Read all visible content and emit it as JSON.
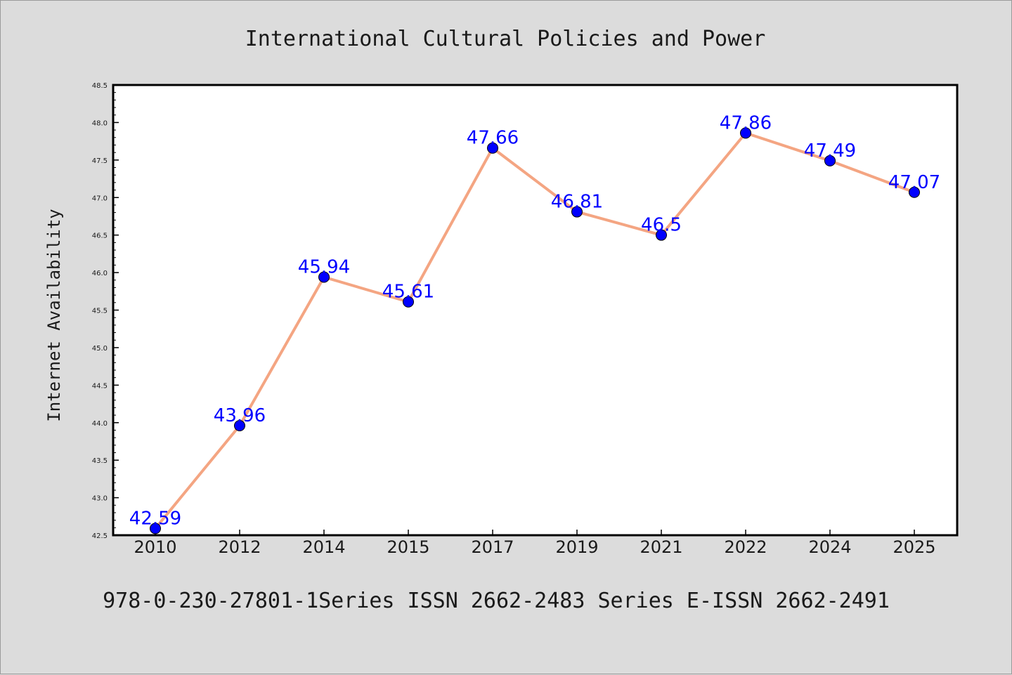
{
  "colors": {
    "background": "#dcdcdc",
    "plot_area": "#ffffff",
    "line": "#f4a582",
    "marker": "#0000ff",
    "data_label": "#0000ff",
    "text": "#1a1a1a"
  },
  "chart_data": {
    "type": "line",
    "title": "International Cultural Policies and Power",
    "xlabel": "",
    "ylabel": "Internet Availability",
    "categories": [
      "2010",
      "2012",
      "2014",
      "2015",
      "2017",
      "2019",
      "2021",
      "2022",
      "2024",
      "2025"
    ],
    "series": [
      {
        "values": [
          42.59,
          43.96,
          45.94,
          45.61,
          47.66,
          46.81,
          46.5,
          47.86,
          47.49,
          47.07
        ],
        "labels": [
          "42.59",
          "43.96",
          "45.94",
          "45.61",
          "47.66",
          "46.81",
          "46.5",
          "47.86",
          "47.49",
          "47.07"
        ]
      }
    ],
    "ylim": [
      42.5,
      48.5
    ],
    "yticks": [
      "42.5",
      "43.0",
      "43.5",
      "44.0",
      "44.5",
      "45.0",
      "45.5",
      "46.0",
      "46.5",
      "47.0",
      "47.5",
      "48.0",
      "48.5"
    ],
    "grid": false,
    "legend": "none"
  },
  "footer": "978-0-230-27801-1Series ISSN 2662-2483 Series E-ISSN 2662-2491"
}
